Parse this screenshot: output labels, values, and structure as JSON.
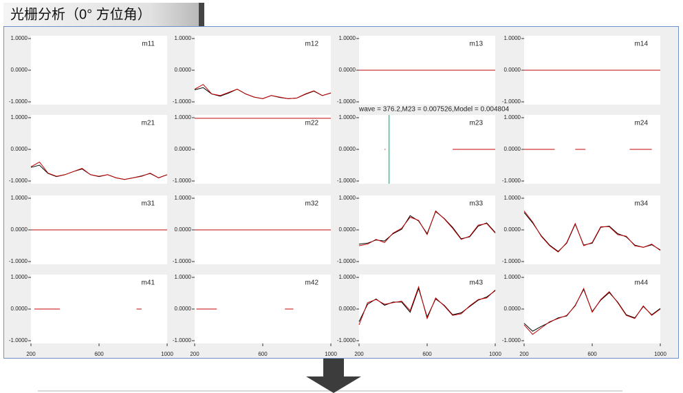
{
  "header": {
    "title": "光栅分析（0° 方位角）"
  },
  "chart_data": [
    {
      "type": "line",
      "title": "m11",
      "xlim": [
        200,
        1000
      ],
      "ylim": [
        -1,
        1
      ],
      "yticks": [
        {
          "value": 1,
          "label": "1.0000"
        },
        {
          "value": 0,
          "label": "0.0000"
        },
        {
          "value": -1,
          "label": "-1.0000"
        }
      ],
      "x": [],
      "series": []
    },
    {
      "type": "line",
      "title": "m12",
      "xlim": [
        200,
        1000
      ],
      "ylim": [
        -1,
        1
      ],
      "yticks": [
        {
          "value": 1,
          "label": "1.0000"
        },
        {
          "value": 0,
          "label": "0.0000"
        },
        {
          "value": -1,
          "label": "-1.0000"
        }
      ],
      "x": [
        200,
        250,
        300,
        350,
        400,
        450,
        500,
        550,
        600,
        650,
        700,
        750,
        800,
        850,
        900,
        950,
        1000
      ],
      "series": [
        {
          "color": "#000000",
          "values": [
            -0.62,
            -0.55,
            -0.75,
            -0.82,
            -0.72,
            -0.6,
            -0.75,
            -0.85,
            -0.9,
            -0.8,
            -0.86,
            -0.9,
            -0.88,
            -0.76,
            -0.66,
            -0.8,
            -0.72
          ]
        },
        {
          "color": "#c00000",
          "values": [
            -0.6,
            -0.45,
            -0.75,
            -0.8,
            -0.7,
            -0.6,
            -0.75,
            -0.85,
            -0.9,
            -0.8,
            -0.85,
            -0.9,
            -0.88,
            -0.75,
            -0.65,
            -0.8,
            -0.72
          ]
        }
      ]
    },
    {
      "type": "line",
      "title": "m13",
      "xlim": [
        200,
        1000
      ],
      "ylim": [
        -1,
        1
      ],
      "yticks": [
        {
          "value": 1,
          "label": "1.0000"
        },
        {
          "value": 0,
          "label": "0.0000"
        },
        {
          "value": -1,
          "label": "-1.0000"
        }
      ],
      "x": [
        200,
        1000
      ],
      "series": [
        {
          "color": "#c00000",
          "values": [
            0,
            0
          ]
        }
      ]
    },
    {
      "type": "line",
      "title": "m14",
      "xlim": [
        200,
        1000
      ],
      "ylim": [
        -1,
        1
      ],
      "yticks": [
        {
          "value": 1,
          "label": "1.0000"
        },
        {
          "value": 0,
          "label": "0.0000"
        },
        {
          "value": -1,
          "label": "-1.0000"
        }
      ],
      "x": [
        200,
        1000
      ],
      "series": [
        {
          "color": "#c00000",
          "values": [
            0,
            0
          ]
        }
      ]
    },
    {
      "type": "line",
      "title": "m21",
      "xlim": [
        200,
        1000
      ],
      "ylim": [
        -1,
        1
      ],
      "yticks": [
        {
          "value": 1,
          "label": "1.0000"
        },
        {
          "value": 0,
          "label": "0.0000"
        },
        {
          "value": -1,
          "label": "-1.0000"
        }
      ],
      "x": [
        200,
        250,
        300,
        350,
        400,
        450,
        500,
        550,
        600,
        650,
        700,
        750,
        800,
        850,
        900,
        950,
        1000
      ],
      "series": [
        {
          "color": "#000000",
          "values": [
            -0.57,
            -0.5,
            -0.76,
            -0.86,
            -0.8,
            -0.7,
            -0.62,
            -0.8,
            -0.86,
            -0.8,
            -0.9,
            -0.95,
            -0.9,
            -0.84,
            -0.76,
            -0.9,
            -0.8
          ]
        },
        {
          "color": "#c00000",
          "values": [
            -0.55,
            -0.4,
            -0.75,
            -0.85,
            -0.8,
            -0.7,
            -0.6,
            -0.8,
            -0.85,
            -0.8,
            -0.9,
            -0.95,
            -0.9,
            -0.85,
            -0.75,
            -0.9,
            -0.8
          ]
        }
      ]
    },
    {
      "type": "line",
      "title": "m22",
      "xlim": [
        200,
        1000
      ],
      "ylim": [
        -1,
        1
      ],
      "yticks": [
        {
          "value": 1,
          "label": "1.0000"
        },
        {
          "value": 0,
          "label": "0.0000"
        },
        {
          "value": -1,
          "label": "-1.0000"
        }
      ],
      "x": [
        200,
        1000
      ],
      "series": [
        {
          "color": "#c00000",
          "values": [
            0.98,
            0.98
          ]
        }
      ]
    },
    {
      "type": "line",
      "title": "m23",
      "xlim": [
        200,
        1000
      ],
      "ylim": [
        -1,
        1
      ],
      "yticks": [
        {
          "value": 1,
          "label": "1.0000"
        },
        {
          "value": 0,
          "label": "0.0000"
        },
        {
          "value": -1,
          "label": "-1.0000"
        }
      ],
      "annotation": "wave = 376.2,M23 = 0.007526,Model = 0.004804",
      "cursor": 376.2,
      "x": [
        350,
        355,
        600,
        750,
        900,
        1000
      ],
      "series": [
        {
          "color": "#c00000",
          "values": [
            0,
            0,
            null,
            0,
            0,
            0
          ]
        }
      ]
    },
    {
      "type": "line",
      "title": "m24",
      "xlim": [
        200,
        1000
      ],
      "ylim": [
        -1,
        1
      ],
      "yticks": [
        {
          "value": 1,
          "label": "1.0000"
        },
        {
          "value": 0,
          "label": "0.0000"
        },
        {
          "value": -1,
          "label": "-1.0000"
        }
      ],
      "x": [
        200,
        380,
        400,
        500,
        560,
        800,
        820,
        950
      ],
      "series": [
        {
          "color": "#c00000",
          "values": [
            0,
            0,
            null,
            0,
            0,
            null,
            0,
            0
          ]
        }
      ]
    },
    {
      "type": "line",
      "title": "m31",
      "xlim": [
        200,
        1000
      ],
      "ylim": [
        -1,
        1
      ],
      "yticks": [
        {
          "value": 1,
          "label": "1.0000"
        },
        {
          "value": 0,
          "label": "0.0000"
        },
        {
          "value": -1,
          "label": "-1.0000"
        }
      ],
      "x": [
        200,
        1000
      ],
      "series": [
        {
          "color": "#c00000",
          "values": [
            0,
            0
          ]
        }
      ]
    },
    {
      "type": "line",
      "title": "m32",
      "xlim": [
        200,
        1000
      ],
      "ylim": [
        -1,
        1
      ],
      "yticks": [
        {
          "value": 1,
          "label": "1.0000"
        },
        {
          "value": 0,
          "label": "0.0000"
        },
        {
          "value": -1,
          "label": "-1.0000"
        }
      ],
      "x": [
        200,
        1000
      ],
      "series": [
        {
          "color": "#c00000",
          "values": [
            0,
            0
          ]
        }
      ]
    },
    {
      "type": "line",
      "title": "m33",
      "xlim": [
        200,
        1000
      ],
      "ylim": [
        -1,
        1
      ],
      "yticks": [
        {
          "value": 1,
          "label": "1.0000"
        },
        {
          "value": 0,
          "label": "0.0000"
        },
        {
          "value": -1,
          "label": "-1.0000"
        }
      ],
      "x": [
        200,
        250,
        300,
        350,
        400,
        450,
        500,
        550,
        600,
        650,
        700,
        750,
        800,
        850,
        900,
        950,
        1000
      ],
      "series": [
        {
          "color": "#000000",
          "values": [
            -0.45,
            -0.42,
            -0.32,
            -0.35,
            -0.12,
            0.02,
            0.45,
            0.28,
            -0.12,
            0.58,
            0.36,
            0.08,
            -0.28,
            -0.22,
            0.12,
            0.22,
            -0.08
          ]
        },
        {
          "color": "#c00000",
          "values": [
            -0.5,
            -0.45,
            -0.3,
            -0.4,
            -0.1,
            0.05,
            0.4,
            0.3,
            -0.15,
            0.6,
            0.35,
            0.05,
            -0.3,
            -0.2,
            0.15,
            0.2,
            -0.1
          ]
        }
      ]
    },
    {
      "type": "line",
      "title": "m34",
      "xlim": [
        200,
        1000
      ],
      "ylim": [
        -1,
        1
      ],
      "yticks": [
        {
          "value": 1,
          "label": "1.0000"
        },
        {
          "value": 0,
          "label": "0.0000"
        },
        {
          "value": -1,
          "label": "-1.0000"
        }
      ],
      "x": [
        200,
        250,
        300,
        350,
        400,
        450,
        500,
        550,
        600,
        650,
        700,
        750,
        800,
        850,
        900,
        950,
        1000
      ],
      "series": [
        {
          "color": "#000000",
          "values": [
            0.55,
            0.22,
            -0.18,
            -0.48,
            -0.68,
            -0.42,
            0.18,
            -0.48,
            -0.42,
            0.08,
            0.12,
            -0.12,
            -0.22,
            -0.48,
            -0.55,
            -0.47,
            -0.63
          ]
        },
        {
          "color": "#c00000",
          "values": [
            0.6,
            0.25,
            -0.2,
            -0.5,
            -0.7,
            -0.4,
            0.2,
            -0.5,
            -0.4,
            0.1,
            0.1,
            -0.15,
            -0.2,
            -0.5,
            -0.55,
            -0.45,
            -0.65
          ]
        }
      ]
    },
    {
      "type": "line",
      "title": "m41",
      "xlim": [
        200,
        1000
      ],
      "ylim": [
        -1,
        1
      ],
      "yticks": [
        {
          "value": 1,
          "label": "1.0000"
        },
        {
          "value": 0,
          "label": "0.0000"
        },
        {
          "value": -1,
          "label": "-1.0000"
        }
      ],
      "xticks": [
        200,
        600,
        1000
      ],
      "x": [
        220,
        370,
        600,
        820,
        850
      ],
      "series": [
        {
          "color": "#c00000",
          "values": [
            0,
            0,
            null,
            0,
            0
          ]
        }
      ]
    },
    {
      "type": "line",
      "title": "m42",
      "xlim": [
        200,
        1000
      ],
      "ylim": [
        -1,
        1
      ],
      "yticks": [
        {
          "value": 1,
          "label": "1.0000"
        },
        {
          "value": 0,
          "label": "0.0000"
        },
        {
          "value": -1,
          "label": "-1.0000"
        }
      ],
      "xticks": [
        200,
        600,
        1000
      ],
      "x": [
        210,
        330,
        600,
        730,
        780
      ],
      "series": [
        {
          "color": "#c00000",
          "values": [
            0,
            0,
            null,
            0,
            0
          ]
        }
      ]
    },
    {
      "type": "line",
      "title": "m43",
      "xlim": [
        200,
        1000
      ],
      "ylim": [
        -1,
        1
      ],
      "yticks": [
        {
          "value": 1,
          "label": "1.0000"
        },
        {
          "value": 0,
          "label": "0.0000"
        },
        {
          "value": -1,
          "label": "-1.0000"
        }
      ],
      "xticks": [
        200,
        600,
        1000
      ],
      "x": [
        200,
        250,
        300,
        350,
        400,
        450,
        500,
        550,
        600,
        650,
        700,
        750,
        800,
        850,
        900,
        950,
        1000
      ],
      "series": [
        {
          "color": "#000000",
          "values": [
            -0.4,
            0.15,
            0.32,
            0.12,
            0.22,
            0.22,
            -0.1,
            0.65,
            -0.25,
            0.32,
            0.12,
            -0.18,
            -0.12,
            0.08,
            0.28,
            0.38,
            0.58
          ]
        },
        {
          "color": "#c00000",
          "values": [
            -0.5,
            0.2,
            0.3,
            0.15,
            0.2,
            0.25,
            -0.05,
            0.7,
            -0.3,
            0.35,
            0.1,
            -0.2,
            -0.15,
            0.1,
            0.3,
            0.35,
            0.6
          ]
        }
      ]
    },
    {
      "type": "line",
      "title": "m44",
      "xlim": [
        200,
        1000
      ],
      "ylim": [
        -1,
        1
      ],
      "yticks": [
        {
          "value": 1,
          "label": "1.0000"
        },
        {
          "value": 0,
          "label": "0.0000"
        },
        {
          "value": -1,
          "label": "-1.0000"
        }
      ],
      "xticks": [
        200,
        600,
        1000
      ],
      "x": [
        200,
        250,
        300,
        350,
        400,
        450,
        500,
        550,
        600,
        650,
        700,
        750,
        800,
        850,
        900,
        950,
        1000
      ],
      "series": [
        {
          "color": "#000000",
          "values": [
            -0.45,
            -0.7,
            -0.55,
            -0.42,
            -0.28,
            -0.22,
            0.12,
            0.62,
            -0.08,
            0.28,
            0.52,
            0.22,
            -0.18,
            -0.28,
            0.08,
            -0.18,
            0.02
          ]
        },
        {
          "color": "#c00000",
          "values": [
            -0.5,
            -0.8,
            -0.6,
            -0.4,
            -0.3,
            -0.2,
            0.1,
            0.65,
            -0.1,
            0.3,
            0.55,
            0.2,
            -0.2,
            -0.3,
            0.1,
            -0.2,
            0
          ]
        }
      ]
    }
  ]
}
